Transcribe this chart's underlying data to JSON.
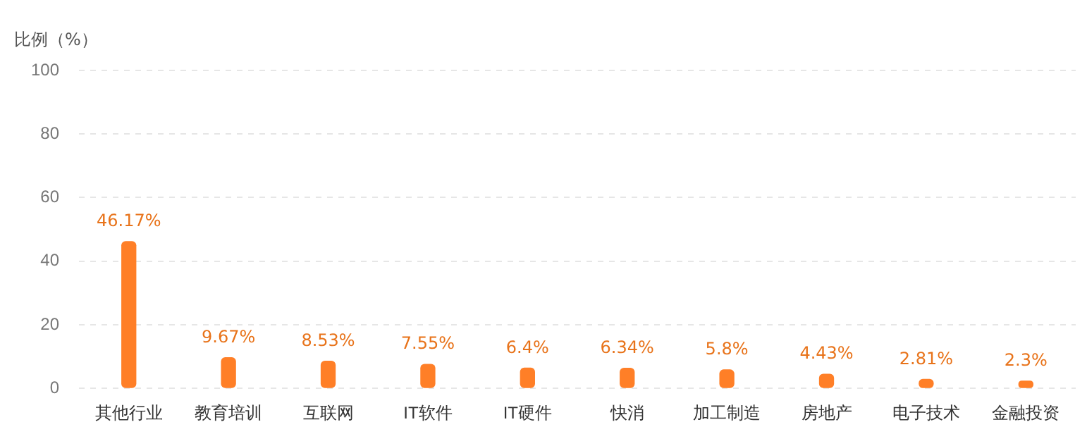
{
  "chart_data": {
    "type": "bar",
    "ylabel": "比例（%）",
    "categories": [
      "其他行业",
      "教育培训",
      "互联网",
      "IT软件",
      "IT硬件",
      "快消",
      "加工制造",
      "房地产",
      "电子技术",
      "金融投资"
    ],
    "values": [
      46.17,
      9.67,
      8.53,
      7.55,
      6.4,
      6.34,
      5.8,
      4.43,
      2.81,
      2.3
    ],
    "value_labels": [
      "46.17%",
      "9.67%",
      "8.53%",
      "7.55%",
      "6.4%",
      "6.34%",
      "5.8%",
      "4.43%",
      "2.81%",
      "2.3%"
    ],
    "color": "#ff7f27",
    "ylim": [
      0,
      100
    ],
    "yticks": [
      0,
      20,
      40,
      60,
      80,
      100
    ],
    "grid": "y",
    "legend": false
  }
}
